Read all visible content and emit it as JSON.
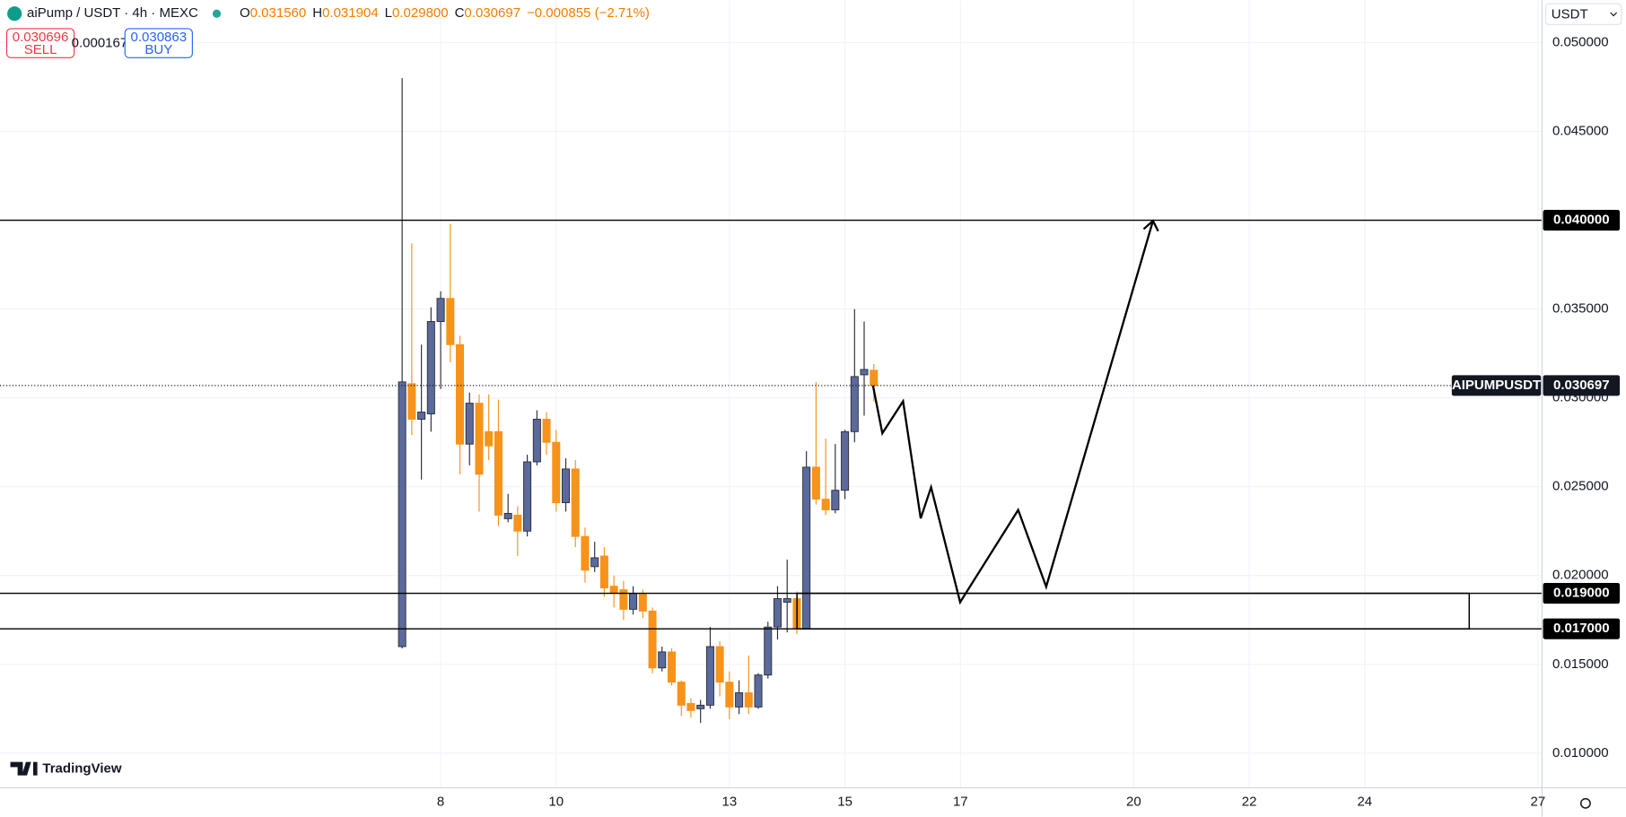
{
  "header": {
    "symbol": "aiPump / USDT · 4h · MEXC",
    "ohlc": [
      {
        "key": "O",
        "value": "0.031560"
      },
      {
        "key": "H",
        "value": "0.031904"
      },
      {
        "key": "L",
        "value": "0.029800"
      },
      {
        "key": "C",
        "value": "0.030697"
      }
    ],
    "change": "−0.000855 (−2.71%)",
    "sell": {
      "price": "0.030696",
      "label": "SELL"
    },
    "spread": "0.000167",
    "buy": {
      "price": "0.030863",
      "label": "BUY"
    },
    "currency": "USDT",
    "brand": "TradingView"
  },
  "chart_data": {
    "type": "candlestick",
    "up_color": "#5b6a9a",
    "down_color": "#f7931a",
    "grid": true,
    "x": [
      7.333,
      7.5,
      7.667,
      7.833,
      8,
      8.167,
      8.333,
      8.5,
      8.667,
      8.833,
      9,
      9.167,
      9.333,
      9.5,
      9.667,
      9.833,
      10,
      10.167,
      10.333,
      10.5,
      10.667,
      10.833,
      11,
      11.167,
      11.333,
      11.5,
      11.667,
      11.833,
      12,
      12.167,
      12.333,
      12.5,
      12.667,
      12.833,
      13,
      13.167,
      13.333,
      13.5,
      13.667,
      13.833,
      14,
      14.167,
      14.333,
      14.5,
      14.667,
      14.833,
      15,
      15.167,
      15.333,
      15.5
    ],
    "open": [
      0.016,
      0.0308,
      0.0288,
      0.0291,
      0.0343,
      0.0356,
      0.033,
      0.0274,
      0.0297,
      0.0281,
      0.0281,
      0.0232,
      0.0234,
      0.0225,
      0.0264,
      0.0288,
      0.0275,
      0.0241,
      0.026,
      0.0222,
      0.0205,
      0.0211,
      0.0194,
      0.0192,
      0.0181,
      0.019,
      0.018,
      0.0148,
      0.0157,
      0.014,
      0.0128,
      0.0125,
      0.0127,
      0.016,
      0.014,
      0.0126,
      0.0134,
      0.0126,
      0.0144,
      0.0171,
      0.0185,
      0.0187,
      0.017,
      0.0261,
      0.0243,
      0.0237,
      0.0248,
      0.0281,
      0.0313,
      0.03156
    ],
    "high": [
      0.048,
      0.0387,
      0.033,
      0.0351,
      0.036,
      0.0398,
      0.0335,
      0.0303,
      0.0302,
      0.0302,
      0.0299,
      0.0246,
      0.0239,
      0.0268,
      0.0293,
      0.0292,
      0.0282,
      0.0266,
      0.0265,
      0.0227,
      0.0219,
      0.0216,
      0.02,
      0.0197,
      0.0194,
      0.0192,
      0.0182,
      0.016,
      0.0159,
      0.0141,
      0.0131,
      0.013,
      0.0171,
      0.0163,
      0.0146,
      0.0141,
      0.0155,
      0.0145,
      0.0174,
      0.0194,
      0.0209,
      0.0191,
      0.027,
      0.0309,
      0.0277,
      0.0274,
      0.0282,
      0.035,
      0.0343,
      0.031904
    ],
    "low": [
      0.0159,
      0.0279,
      0.0254,
      0.0281,
      0.0305,
      0.032,
      0.0257,
      0.0262,
      0.0236,
      0.0265,
      0.0228,
      0.023,
      0.0211,
      0.0222,
      0.0262,
      0.0268,
      0.0236,
      0.0236,
      0.0216,
      0.0196,
      0.0202,
      0.0188,
      0.0182,
      0.0175,
      0.0178,
      0.0176,
      0.0145,
      0.0146,
      0.0138,
      0.0121,
      0.012,
      0.0117,
      0.0125,
      0.0132,
      0.0119,
      0.0122,
      0.0122,
      0.0125,
      0.0142,
      0.0164,
      0.0168,
      0.0167,
      0.017,
      0.024,
      0.0234,
      0.0235,
      0.0243,
      0.0275,
      0.029,
      0.0298
    ],
    "close": [
      0.0309,
      0.0288,
      0.0292,
      0.0343,
      0.0356,
      0.033,
      0.0274,
      0.0297,
      0.0257,
      0.0273,
      0.0234,
      0.0235,
      0.0225,
      0.0264,
      0.0288,
      0.0275,
      0.0241,
      0.026,
      0.0222,
      0.0203,
      0.021,
      0.0193,
      0.019,
      0.0181,
      0.019,
      0.018,
      0.0148,
      0.0157,
      0.014,
      0.0127,
      0.0124,
      0.0127,
      0.016,
      0.014,
      0.0126,
      0.0134,
      0.0126,
      0.0144,
      0.0171,
      0.0187,
      0.0187,
      0.017,
      0.0261,
      0.0243,
      0.0237,
      0.0248,
      0.0281,
      0.0312,
      0.0316,
      0.030697
    ],
    "xlim": [
      0.37,
      27.07
    ],
    "ylim": [
      0.00805,
      0.05239
    ],
    "xticks": [
      8,
      10,
      13,
      15,
      17,
      20,
      22,
      24,
      27
    ],
    "yticks": [
      {
        "value": 0.01,
        "label": "0.010000"
      },
      {
        "value": 0.015,
        "label": "0.015000"
      },
      {
        "value": 0.02,
        "label": "0.020000"
      },
      {
        "value": 0.025,
        "label": "0.025000"
      },
      {
        "value": 0.03,
        "label": "0.030000"
      },
      {
        "value": 0.035,
        "label": "0.035000"
      },
      {
        "value": 0.04,
        "label": "0.040000"
      },
      {
        "value": 0.045,
        "label": "0.045000"
      },
      {
        "value": 0.05,
        "label": "0.050000"
      }
    ],
    "hlines": [
      {
        "value": 0.04,
        "label": "0.040000"
      },
      {
        "value": 0.019,
        "label": "0.019000"
      },
      {
        "value": 0.017,
        "label": "0.017000"
      }
    ],
    "zone": {
      "x": [
        14.17,
        25.81
      ],
      "y": [
        0.017,
        0.019
      ]
    },
    "last_price": {
      "symbol": "AIPUMPUSDT",
      "value": 0.030697,
      "label": "0.030697"
    },
    "projection": {
      "x": [
        15.486,
        15.648,
        16.007,
        16.312,
        16.492,
        16.995,
        18.0,
        18.485,
        20.334
      ],
      "y": [
        0.03069,
        0.02801,
        0.02981,
        0.02322,
        0.02497,
        0.0185,
        0.02369,
        0.01937,
        0.03997
      ]
    }
  }
}
